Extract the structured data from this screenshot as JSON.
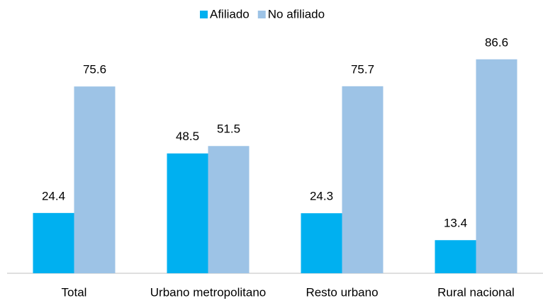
{
  "chart_data": {
    "type": "bar",
    "categories": [
      "Total",
      "Urbano metropolitano",
      "Resto urbano",
      "Rural nacional"
    ],
    "series": [
      {
        "name": "Afiliado",
        "color": "#00b0f0",
        "values": [
          24.4,
          48.5,
          24.3,
          13.4
        ]
      },
      {
        "name": "No afiliado",
        "color": "#9dc3e6",
        "values": [
          75.6,
          51.5,
          75.7,
          86.6
        ]
      }
    ],
    "ylim": [
      0,
      100
    ],
    "legend": "top"
  }
}
